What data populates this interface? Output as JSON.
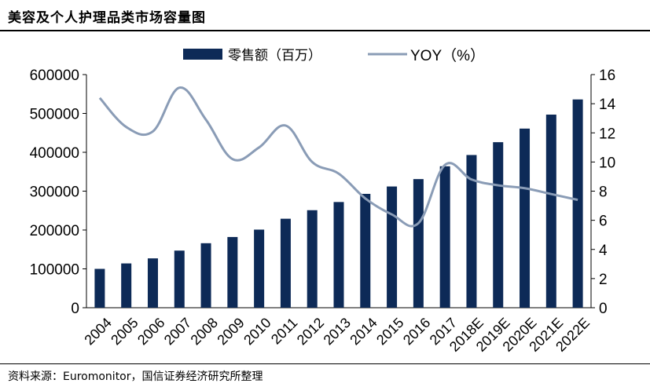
{
  "header": {
    "title": "美容及个人护理品类市场容量图"
  },
  "footer": {
    "source": "资料来源：Euromonitor，国信证券经济研究所整理"
  },
  "chart_data": {
    "type": "bar",
    "categories": [
      "2004",
      "2005",
      "2006",
      "2007",
      "2008",
      "2009",
      "2010",
      "2011",
      "2012",
      "2013",
      "2014",
      "2015",
      "2016",
      "2017",
      "2018E",
      "2019E",
      "2020E",
      "2021E",
      "2022E"
    ],
    "series": [
      {
        "name": "零售额（百万）",
        "type": "bar",
        "axis": "left",
        "color": "#0d2a57",
        "values": [
          100000,
          114000,
          127000,
          147000,
          166000,
          182000,
          201000,
          229000,
          251000,
          272000,
          293000,
          312000,
          331000,
          364000,
          393000,
          426000,
          461000,
          497000,
          536000
        ]
      },
      {
        "name": "YOY（%）",
        "type": "line",
        "axis": "right",
        "color": "#8a9cb6",
        "values": [
          14.4,
          12.4,
          12.1,
          15.1,
          12.9,
          10.2,
          11.0,
          12.5,
          10.0,
          9.2,
          7.5,
          6.4,
          5.8,
          9.8,
          8.8,
          8.4,
          8.2,
          7.8,
          7.4
        ]
      }
    ],
    "y_left": {
      "ylim": [
        0,
        600000
      ],
      "ticks": [
        "0",
        "100000",
        "200000",
        "300000",
        "400000",
        "500000",
        "600000"
      ]
    },
    "y_right": {
      "ylim": [
        0,
        16
      ],
      "ticks": [
        "0",
        "2",
        "4",
        "6",
        "8",
        "10",
        "12",
        "14",
        "16"
      ]
    },
    "legend": "top-center",
    "grid": false
  }
}
